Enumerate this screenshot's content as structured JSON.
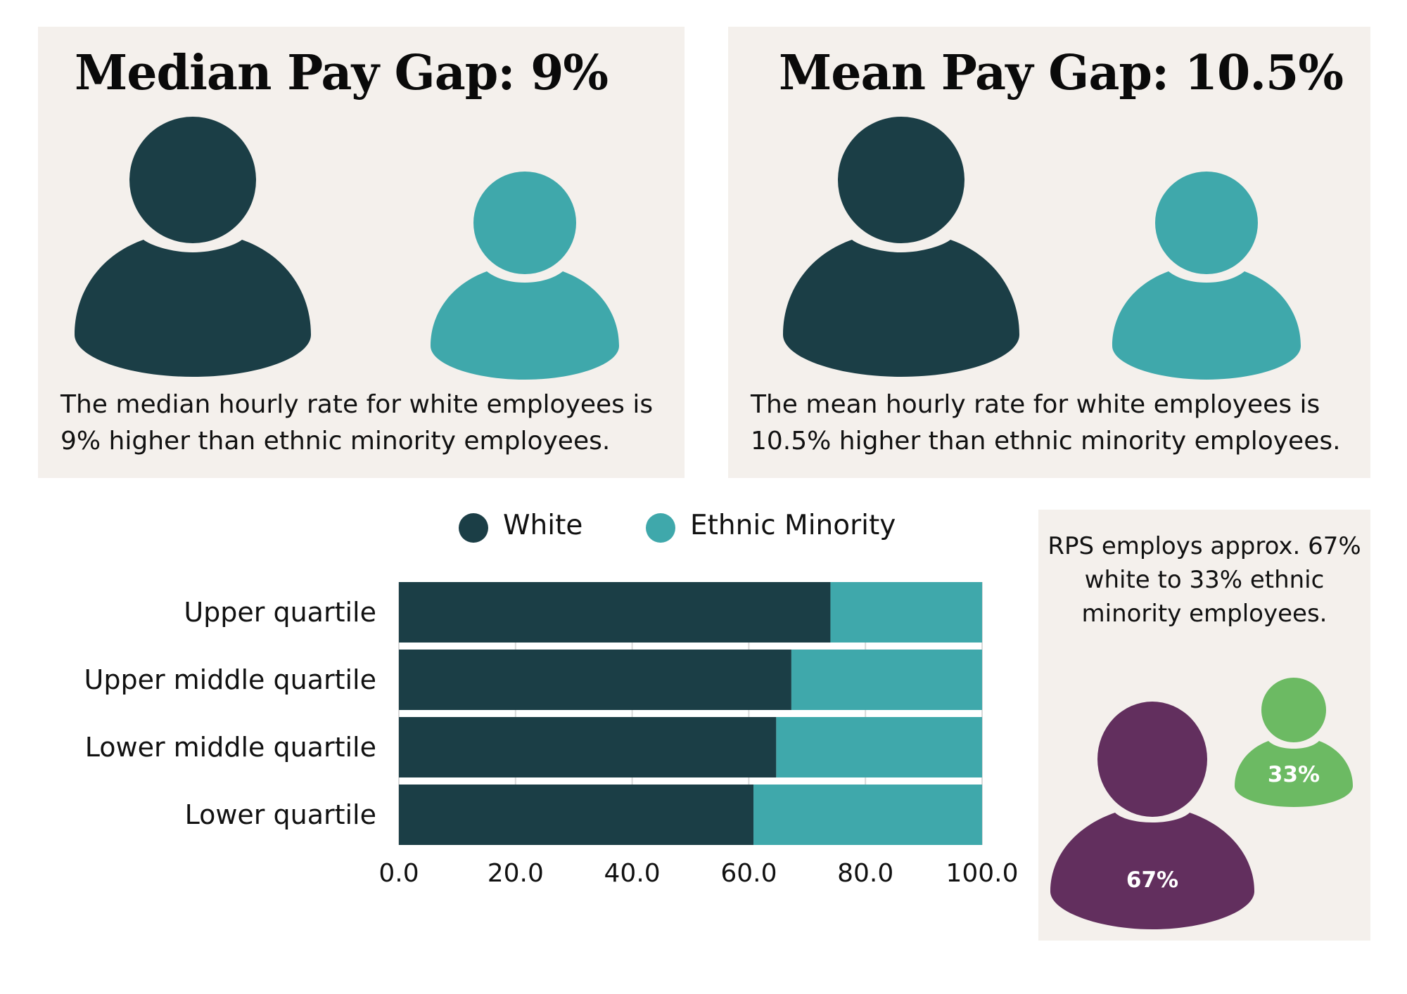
{
  "median": {
    "title": "Median Pay Gap: 9%",
    "description": "The median hourly rate for white employees is 9% higher than ethnic minority employees."
  },
  "mean": {
    "title": "Mean Pay Gap: 10.5%",
    "description": "The mean hourly rate for white employees is 10.5% higher than ethnic minority employees."
  },
  "icons": {
    "white_person": "person-icon",
    "minority_person": "person-icon"
  },
  "rps": {
    "text": "RPS employs approx. 67% white to 33% ethnic minority employees.",
    "white_pct_label": "67%",
    "minority_pct_label": "33%",
    "white_pct": 67,
    "minority_pct": 33
  },
  "colors": {
    "white": "#1b3e46",
    "ethnic_minority": "#3fa8ab",
    "rps_white": "#622f5e",
    "rps_minority": "#6cba63",
    "panel_bg": "#f4f0ec"
  },
  "chart_data": {
    "type": "bar",
    "orientation": "horizontal",
    "stacked": true,
    "categories": [
      "Upper quartile",
      "Upper middle quartile",
      "Lower middle quartile",
      "Lower quartile"
    ],
    "series": [
      {
        "name": "White",
        "values": [
          74,
          67.3,
          64.7,
          60.8
        ]
      },
      {
        "name": "Ethnic Minority",
        "values": [
          26,
          32.7,
          35.3,
          39.2
        ]
      }
    ],
    "xlim": [
      0,
      100
    ],
    "xticks": [
      "0.0",
      "20.0",
      "40.0",
      "60.0",
      "80.0",
      "100.0"
    ],
    "grid": true,
    "legend": "top"
  }
}
